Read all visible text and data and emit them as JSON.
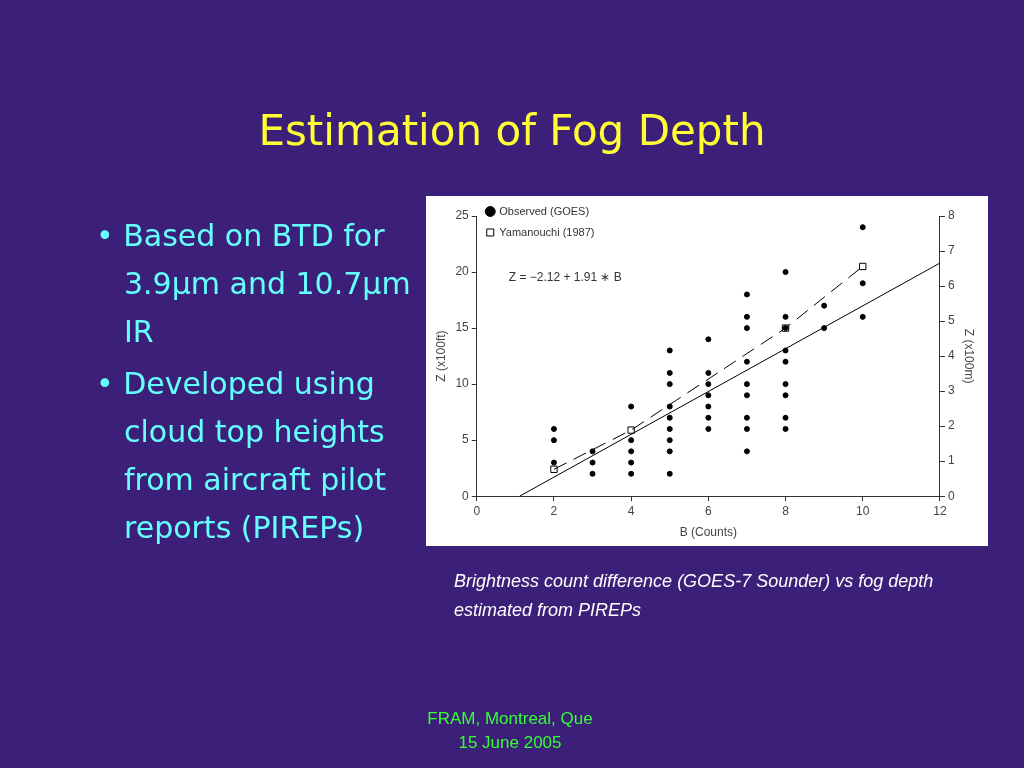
{
  "chart_data": {
    "type": "scatter",
    "title": "Estimation of Fog Depth",
    "xlabel": "B (Counts)",
    "ylabel": "Z (x100ft)",
    "y2label": "Z (x100m)",
    "xlim": [
      0,
      12
    ],
    "xticks": [
      0,
      2,
      4,
      6,
      8,
      10,
      12
    ],
    "ylim": [
      0,
      25
    ],
    "yticks": [
      0,
      5,
      10,
      15,
      20,
      25
    ],
    "y2lim": [
      0,
      8
    ],
    "y2ticks": [
      0,
      1,
      2,
      3,
      4,
      5,
      6,
      7,
      8
    ],
    "grid": false,
    "legend": "top left",
    "series": [
      {
        "name": "Observed (GOES)",
        "type": "scatter",
        "marker": "circle",
        "color": "#000000",
        "x": [
          2,
          2,
          2,
          3,
          3,
          3,
          4,
          4,
          4,
          4,
          4,
          5,
          5,
          5,
          5,
          5,
          5,
          5,
          5,
          5,
          6,
          6,
          6,
          6,
          6,
          6,
          6,
          7,
          7,
          7,
          7,
          7,
          7,
          7,
          7,
          7,
          8,
          8,
          8,
          8,
          8,
          8,
          8,
          8,
          8,
          9,
          9,
          10,
          10,
          10
        ],
        "values": [
          6,
          5,
          3,
          4,
          3,
          2,
          8,
          5,
          4,
          3,
          2,
          13,
          11,
          10,
          8,
          7,
          6,
          5,
          4,
          2,
          14,
          11,
          10,
          9,
          8,
          7,
          6,
          18,
          16,
          15,
          12,
          10,
          9,
          7,
          6,
          4,
          20,
          16,
          15,
          13,
          12,
          10,
          9,
          7,
          6,
          17,
          15,
          24,
          19,
          16
        ]
      },
      {
        "name": "Yamanouchi (1987)",
        "type": "line",
        "marker": "square",
        "line_style": "dashed",
        "color": "#000000",
        "x": [
          2,
          4,
          8,
          10
        ],
        "values": [
          2.4,
          5.9,
          15,
          20.5
        ]
      },
      {
        "type": "line",
        "marker": "none",
        "line_style": "solid",
        "color": "#000000",
        "x": [
          1.11,
          12
        ],
        "values": [
          0,
          20.8
        ]
      }
    ],
    "annotations": [
      "Z = −2.12 + 1.91 ∗ B",
      "• Based on BTD for 3.9μm and 10.7μm IR",
      "• Developed using cloud top heights from aircraft pilot reports (PIREPs)",
      "Brightness count difference (GOES-7 Sounder) vs fog depth estimated from PIREPs",
      "FRAM, Montreal, Que 15 June 2005"
    ]
  }
}
